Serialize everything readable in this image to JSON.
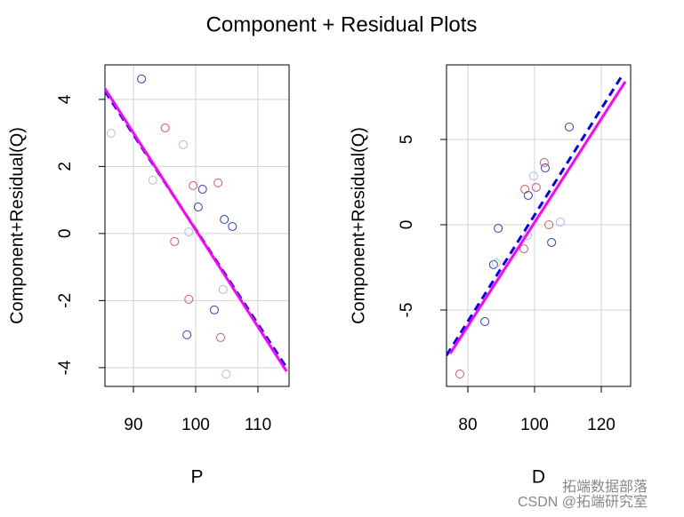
{
  "title": "Component + Residual Plots",
  "watermark": {
    "line1": "拓端数据部落",
    "line2": "CSDN @拓端研究室"
  },
  "chart_data": [
    {
      "type": "scatter",
      "xlabel": "P",
      "ylabel": "Component+Residual(Q)",
      "xlim": [
        85.43,
        115
      ],
      "ylim": [
        -4.56,
        5.03
      ],
      "xticks": [
        90,
        100,
        110
      ],
      "yticks": [
        -4,
        -2,
        0,
        2,
        4
      ],
      "grid": true,
      "series": [
        {
          "color": "#2a3fbf",
          "x": [
            91.3,
            101.1,
            100.4,
            104.6,
            105.9,
            103.0,
            98.6
          ],
          "values": [
            4.61,
            1.32,
            0.79,
            0.42,
            0.21,
            -2.28,
            -3.02
          ]
        },
        {
          "color": "#df536b",
          "x": [
            95.1,
            99.6,
            103.6,
            96.6,
            98.9,
            104.0
          ],
          "values": [
            3.15,
            1.43,
            1.51,
            -0.24,
            -1.96,
            -3.1
          ]
        },
        {
          "color": "#aebfe3",
          "x": [
            86.4,
            98.0,
            93.1,
            98.9,
            104.4,
            104.9
          ],
          "values": [
            2.99,
            2.65,
            1.59,
            0.05,
            -1.67,
            -4.19
          ]
        }
      ],
      "lines": [
        {
          "color": "#0000ff",
          "dash": true,
          "x": [
            85.43,
            114.6
          ],
          "values": [
            4.24,
            -4.0
          ]
        },
        {
          "color": "#ff00ff",
          "dash": false,
          "x": [
            85.43,
            114.6
          ],
          "values": [
            4.32,
            -4.11
          ]
        }
      ]
    },
    {
      "type": "scatter",
      "xlabel": "D",
      "ylabel": "Component+Residual(Q)",
      "xlim": [
        73.6,
        128.8
      ],
      "ylim": [
        -9.48,
        9.375
      ],
      "xticks": [
        80,
        100,
        120
      ],
      "yticks": [
        -5,
        0,
        5
      ],
      "grid": true,
      "series": [
        {
          "color": "#2a3fbf",
          "x": [
            85.1,
            87.7,
            89.1,
            98.1,
            103.2,
            105.1,
            110.4
          ],
          "values": [
            -5.68,
            -2.34,
            -0.21,
            1.72,
            3.33,
            -1.04,
            5.73
          ]
        },
        {
          "color": "#df536b",
          "x": [
            77.6,
            96.8,
            97.1,
            100.5,
            102.9,
            104.3
          ],
          "values": [
            -8.75,
            -1.41,
            2.08,
            2.19,
            3.65,
            0.0
          ]
        },
        {
          "color": "#aebfe3",
          "x": [
            88.5,
            97.9,
            99.7,
            107.7
          ],
          "values": [
            -2.24,
            -0.63,
            2.86,
            0.16
          ]
        }
      ],
      "lines": [
        {
          "color": "#0000ff",
          "dash": true,
          "x": [
            73.6,
            126.4
          ],
          "values": [
            -7.66,
            8.8
          ]
        },
        {
          "color": "#ff00ff",
          "dash": false,
          "x": [
            74.7,
            127.2
          ],
          "values": [
            -7.55,
            8.39
          ]
        }
      ]
    }
  ]
}
